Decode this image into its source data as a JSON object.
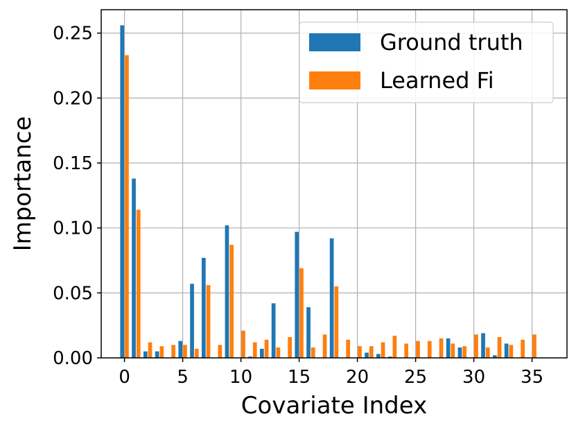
{
  "chart_data": {
    "type": "bar",
    "title": "",
    "xlabel": "Covariate Index",
    "ylabel": "Importance",
    "xlim": [
      -2,
      38
    ],
    "ylim": [
      0,
      0.268
    ],
    "x_ticks": [
      0,
      5,
      10,
      15,
      20,
      25,
      30,
      35
    ],
    "x_tick_labels": [
      "0",
      "5",
      "10",
      "15",
      "20",
      "25",
      "30",
      "35"
    ],
    "y_ticks": [
      0.0,
      0.05,
      0.1,
      0.15,
      0.2,
      0.25
    ],
    "y_tick_labels": [
      "0.00",
      "0.05",
      "0.10",
      "0.15",
      "0.20",
      "0.25"
    ],
    "grid": true,
    "legend_position": "top-right",
    "categories": [
      0,
      1,
      2,
      3,
      4,
      5,
      6,
      7,
      8,
      9,
      10,
      11,
      12,
      13,
      14,
      15,
      16,
      17,
      18,
      19,
      20,
      21,
      22,
      23,
      24,
      25,
      26,
      27,
      28,
      29,
      30,
      31,
      32,
      33,
      34,
      35
    ],
    "series": [
      {
        "name": "Ground truth",
        "color": "#1f77b4",
        "values": [
          0.256,
          0.138,
          0.005,
          0.005,
          0.0,
          0.013,
          0.057,
          0.077,
          0.0,
          0.102,
          0.0,
          0.001,
          0.007,
          0.042,
          0.0,
          0.097,
          0.039,
          0.0,
          0.092,
          0.0,
          0.0,
          0.004,
          0.003,
          0.001,
          0.0,
          0.0,
          0.0,
          0.0,
          0.015,
          0.008,
          0.0,
          0.019,
          0.002,
          0.011,
          0.0,
          0.0
        ]
      },
      {
        "name": "Learned Fi",
        "color": "#ff7f0e",
        "values": [
          0.233,
          0.114,
          0.012,
          0.009,
          0.01,
          0.01,
          0.007,
          0.056,
          0.01,
          0.087,
          0.021,
          0.012,
          0.014,
          0.008,
          0.016,
          0.069,
          0.008,
          0.018,
          0.055,
          0.014,
          0.009,
          0.009,
          0.012,
          0.017,
          0.011,
          0.013,
          0.013,
          0.015,
          0.011,
          0.009,
          0.018,
          0.008,
          0.016,
          0.01,
          0.014,
          0.018
        ]
      }
    ]
  }
}
